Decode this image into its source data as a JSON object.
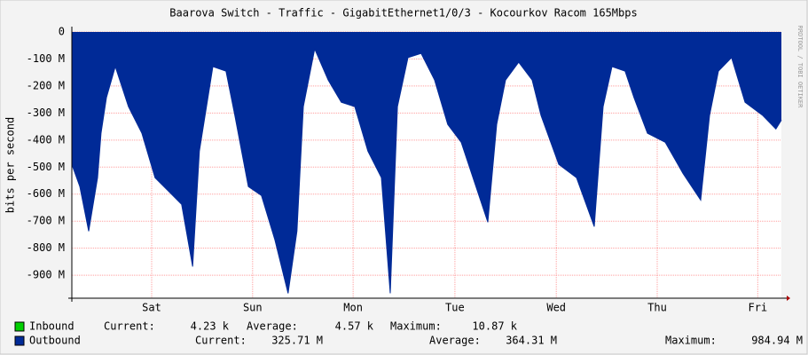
{
  "chart_data": {
    "type": "area",
    "title": "Baarova Switch - Traffic - GigabitEthernet1/0/3 - Kocourkov Racom 165Mbps",
    "ylabel": "bits per second",
    "watermark": "RRDTOOL / TOBI OETIKER",
    "stat_labels": [
      "Current:",
      "Average:",
      "Maximum:"
    ],
    "xlim": [
      0,
      168
    ],
    "xticks": [
      {
        "value": 18.9,
        "label": "Sat"
      },
      {
        "value": 42.8,
        "label": "Sun"
      },
      {
        "value": 66.6,
        "label": "Mon"
      },
      {
        "value": 90.7,
        "label": "Tue"
      },
      {
        "value": 114.7,
        "label": "Wed"
      },
      {
        "value": 138.6,
        "label": "Thu"
      },
      {
        "value": 162.4,
        "label": "Fri"
      }
    ],
    "ylim": [
      -985000000,
      0
    ],
    "yticks": [
      0,
      {
        "value": -100000000,
        "label": "-100 M"
      },
      {
        "value": -200000000,
        "label": "-200 M"
      },
      {
        "value": -300000000,
        "label": "-300 M"
      },
      {
        "value": -400000000,
        "label": "-400 M"
      },
      {
        "value": -500000000,
        "label": "-500 M"
      },
      {
        "value": -600000000,
        "label": "-600 M"
      },
      {
        "value": -700000000,
        "label": "-700 M"
      },
      {
        "value": -800000000,
        "label": "-800 M"
      },
      {
        "value": -900000000,
        "label": "-900 M"
      }
    ],
    "grid": true,
    "x": [
      0,
      1.9,
      4.0,
      6.1,
      6.9,
      8.2,
      10.3,
      13.4,
      16.6,
      19.7,
      22.9,
      26.0,
      28.6,
      30.2,
      33.4,
      36.5,
      38.6,
      41.8,
      44.9,
      48.1,
      51.2,
      53.3,
      54.8,
      57.5,
      60.7,
      63.8,
      67.0,
      70.1,
      73.3,
      75.4,
      77.1,
      79.6,
      82.7,
      85.9,
      89.0,
      92.2,
      96.4,
      98.5,
      100.6,
      102.7,
      105.8,
      109.0,
      111.1,
      115.3,
      119.5,
      123.7,
      125.8,
      127.9,
      131.0,
      133.1,
      136.3,
      140.5,
      144.7,
      148.9,
      151.0,
      153.1,
      156.2,
      159.4,
      163.6,
      166.7,
      168.0
    ],
    "series": [
      {
        "name": "Inbound",
        "color": "#00cf00",
        "stats": [
          {
            "value": 4230,
            "label": "4.23 k"
          },
          {
            "value": 4570,
            "label": "4.57 k"
          },
          {
            "value": 10870,
            "label": "10.87 k"
          }
        ]
      },
      {
        "name": "Outbound",
        "color": "#002a97",
        "stats": [
          {
            "value": 325710000,
            "label": "325.71 M"
          },
          {
            "value": 364310000,
            "label": "364.31 M"
          },
          {
            "value": 984940000,
            "label": "984.94 M"
          }
        ],
        "values": [
          -490000000,
          -572000000,
          -737000000,
          -539000000,
          -375000000,
          -243000000,
          -128000000,
          -276000000,
          -375000000,
          -539000000,
          -589000000,
          -638000000,
          -868000000,
          -441000000,
          -128000000,
          -145000000,
          -309000000,
          -572000000,
          -605000000,
          -770000000,
          -967000000,
          -737000000,
          -276000000,
          -63000000,
          -178000000,
          -260000000,
          -276000000,
          -441000000,
          -539000000,
          -967000000,
          -276000000,
          -95000000,
          -79000000,
          -178000000,
          -342000000,
          -408000000,
          -605000000,
          -704000000,
          -342000000,
          -178000000,
          -112000000,
          -178000000,
          -309000000,
          -490000000,
          -539000000,
          -720000000,
          -276000000,
          -128000000,
          -145000000,
          -243000000,
          -375000000,
          -408000000,
          -523000000,
          -622000000,
          -309000000,
          -145000000,
          -95000000,
          -260000000,
          -309000000,
          -359000000,
          -326000000
        ]
      }
    ]
  }
}
